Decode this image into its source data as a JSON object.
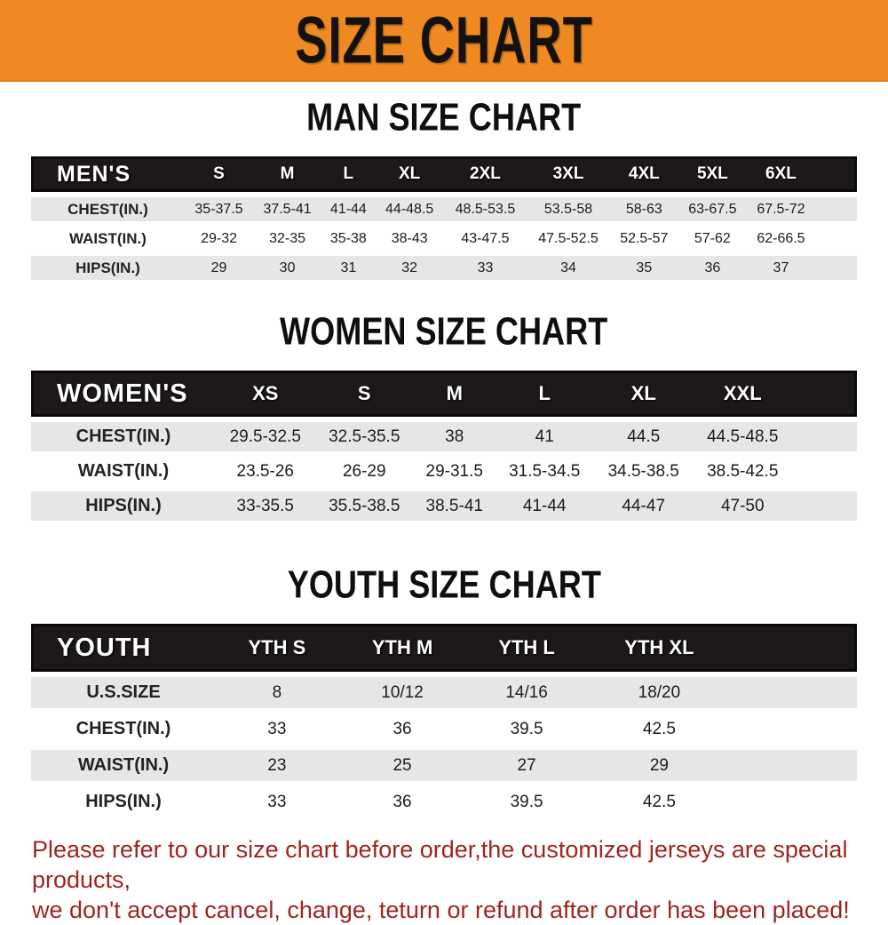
{
  "banner": {
    "title": "SIZE CHART"
  },
  "colors": {
    "banner_orange": "#ee8a21",
    "header_black": "#1d1819",
    "stripe_gray": "#e6e6e6",
    "note_red": "#9e2520"
  },
  "sections": [
    {
      "title": "MAN SIZE CHART",
      "header_label": "MEN'S",
      "columns": [
        "S",
        "M",
        "L",
        "XL",
        "2XL",
        "3XL",
        "4XL",
        "5XL",
        "6XL"
      ],
      "rows": [
        {
          "label": "CHEST(IN.)",
          "values": [
            "35-37.5",
            "37.5-41",
            "41-44",
            "44-48.5",
            "48.5-53.5",
            "53.5-58",
            "58-63",
            "63-67.5",
            "67.5-72"
          ]
        },
        {
          "label": "WAIST(IN.)",
          "values": [
            "29-32",
            "32-35",
            "35-38",
            "38-43",
            "43-47.5",
            "47.5-52.5",
            "52.5-57",
            "57-62",
            "62-66.5"
          ]
        },
        {
          "label": "HIPS(IN.)",
          "values": [
            "29",
            "30",
            "31",
            "32",
            "33",
            "34",
            "35",
            "36",
            "37"
          ]
        }
      ]
    },
    {
      "title": "WOMEN SIZE CHART",
      "header_label": "WOMEN'S",
      "columns": [
        "XS",
        "S",
        "M",
        "L",
        "XL",
        "XXL"
      ],
      "rows": [
        {
          "label": "CHEST(IN.)",
          "values": [
            "29.5-32.5",
            "32.5-35.5",
            "38",
            "41",
            "44.5",
            "44.5-48.5"
          ]
        },
        {
          "label": "WAIST(IN.)",
          "values": [
            "23.5-26",
            "26-29",
            "29-31.5",
            "31.5-34.5",
            "34.5-38.5",
            "38.5-42.5"
          ]
        },
        {
          "label": "HIPS(IN.)",
          "values": [
            "33-35.5",
            "35.5-38.5",
            "38.5-41",
            "41-44",
            "44-47",
            "47-50"
          ]
        }
      ]
    },
    {
      "title": "YOUTH SIZE CHART",
      "header_label": "YOUTH",
      "columns": [
        "YTH S",
        "YTH M",
        "YTH L",
        "YTH XL"
      ],
      "rows": [
        {
          "label": "U.S.SIZE",
          "values": [
            "8",
            "10/12",
            "14/16",
            "18/20"
          ]
        },
        {
          "label": "CHEST(IN.)",
          "values": [
            "33",
            "36",
            "39.5",
            "42.5"
          ]
        },
        {
          "label": "WAIST(IN.)",
          "values": [
            "23",
            "25",
            "27",
            "29"
          ]
        },
        {
          "label": "HIPS(IN.)",
          "values": [
            "33",
            "36",
            "39.5",
            "42.5"
          ]
        }
      ]
    }
  ],
  "footer": {
    "line1": "Please refer to our size chart before order,the customized jerseys are special products,",
    "line2": "we don't accept cancel, change, teturn or refund after order has been placed!"
  }
}
